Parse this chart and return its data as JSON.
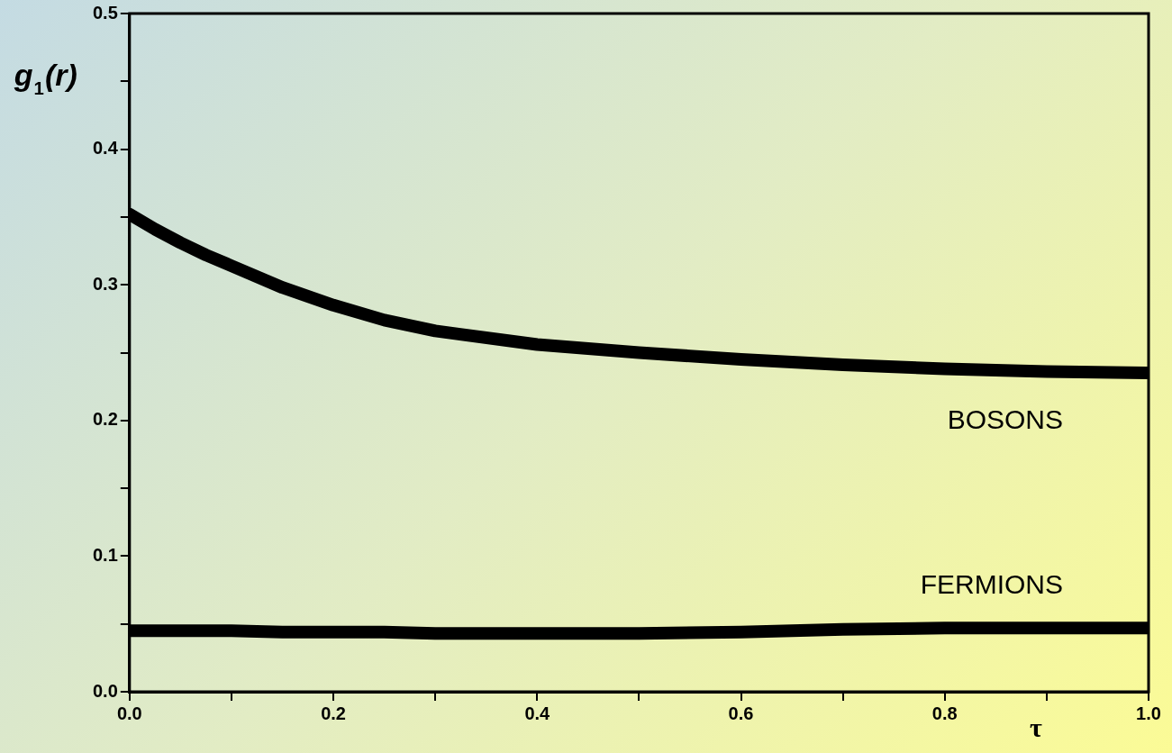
{
  "chart_data": {
    "type": "line",
    "xlabel": "τ",
    "ylabel": "g$_{1}$(r)",
    "xlim": [
      0,
      1
    ],
    "ylim": [
      0,
      0.5
    ],
    "xticks": [
      {
        "value": 0,
        "label": "0.0"
      },
      {
        "value": 0.1,
        "label": null
      },
      {
        "value": 0.2,
        "label": "0.2"
      },
      {
        "value": 0.3,
        "label": null
      },
      {
        "value": 0.4,
        "label": "0.4"
      },
      {
        "value": 0.5,
        "label": null
      },
      {
        "value": 0.6,
        "label": "0.6"
      },
      {
        "value": 0.7,
        "label": null
      },
      {
        "value": 0.8,
        "label": "0.8"
      },
      {
        "value": 0.9,
        "label": null
      },
      {
        "value": 1,
        "label": "1.0"
      }
    ],
    "yticks": [
      {
        "value": 0,
        "label": "0.0"
      },
      {
        "value": 0.05,
        "label": null
      },
      {
        "value": 0.1,
        "label": "0.1"
      },
      {
        "value": 0.15,
        "label": null
      },
      {
        "value": 0.2,
        "label": "0.2"
      },
      {
        "value": 0.25,
        "label": null
      },
      {
        "value": 0.3,
        "label": "0.3"
      },
      {
        "value": 0.35,
        "label": null
      },
      {
        "value": 0.4,
        "label": "0.4"
      },
      {
        "value": 0.45,
        "label": null
      },
      {
        "value": 0.5,
        "label": "0.5"
      }
    ],
    "grid": false,
    "legend": false,
    "marker": "none",
    "line_style": "solid",
    "x": [
      0,
      0.025,
      0.05,
      0.075,
      0.1,
      0.15,
      0.2,
      0.25,
      0.3,
      0.4,
      0.5,
      0.6,
      0.7,
      0.8,
      0.9,
      1
    ],
    "series": [
      {
        "name": "BOSONS",
        "color": "#000000",
        "values": [
          0.352,
          0.341,
          0.331,
          0.322,
          0.314,
          0.298,
          0.285,
          0.274,
          0.266,
          0.256,
          0.25,
          0.245,
          0.241,
          0.238,
          0.236,
          0.235
        ]
      },
      {
        "name": "FERMIONS",
        "color": "#000000",
        "values": [
          0.045,
          0.045,
          0.045,
          0.045,
          0.045,
          0.044,
          0.044,
          0.044,
          0.043,
          0.043,
          0.043,
          0.044,
          0.046,
          0.047,
          0.047,
          0.047
        ]
      }
    ]
  }
}
